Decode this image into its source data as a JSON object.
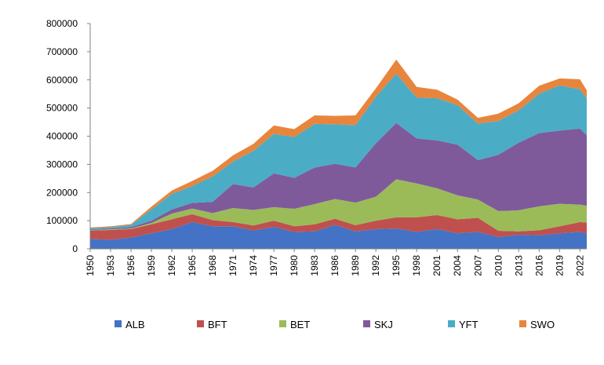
{
  "chart_data": {
    "type": "area",
    "stacked": true,
    "title": "",
    "xlabel": "",
    "ylabel": "",
    "ylim": [
      0,
      800000
    ],
    "yticks": [
      0,
      100000,
      200000,
      300000,
      400000,
      500000,
      600000,
      700000,
      800000
    ],
    "xlim": [
      1950,
      2023
    ],
    "xtick_values": [
      1950,
      1953,
      1956,
      1959,
      1962,
      1965,
      1968,
      1971,
      1974,
      1977,
      1980,
      1983,
      1986,
      1989,
      1992,
      1995,
      1998,
      2001,
      2004,
      2007,
      2010,
      2013,
      2016,
      2019,
      2022
    ],
    "xtick_labels": [
      "1950",
      "1953",
      "1956",
      "1959",
      "1962",
      "1965",
      "1968",
      "1971",
      "1974",
      "1977",
      "1980",
      "1983",
      "1986",
      "1989",
      "1992",
      "1995",
      "1998",
      "2001",
      "2004",
      "2007",
      "2010",
      "2013",
      "2016",
      "2019",
      "2022"
    ],
    "grid": false,
    "legend_position": "bottom",
    "key_x": [
      1950,
      1953,
      1956,
      1959,
      1962,
      1965,
      1968,
      1971,
      1974,
      1977,
      1980,
      1983,
      1986,
      1989,
      1992,
      1995,
      1998,
      2001,
      2004,
      2007,
      2010,
      2013,
      2016,
      2019,
      2022,
      2023
    ],
    "series": [
      {
        "name": "ALB",
        "color": "#4472C4",
        "values": [
          35000,
          32000,
          40000,
          55000,
          70000,
          95000,
          80000,
          80000,
          65000,
          78000,
          60000,
          62000,
          85000,
          62000,
          70000,
          72000,
          60000,
          70000,
          55000,
          60000,
          42000,
          50000,
          48000,
          55000,
          60000,
          55000
        ]
      },
      {
        "name": "BFT",
        "color": "#C0504D",
        "values": [
          30000,
          35000,
          30000,
          32000,
          35000,
          28000,
          22000,
          15000,
          18000,
          22000,
          20000,
          25000,
          22000,
          22000,
          30000,
          40000,
          52000,
          50000,
          50000,
          50000,
          22000,
          12000,
          18000,
          25000,
          35000,
          38000
        ]
      },
      {
        "name": "BET",
        "color": "#9BBB59",
        "values": [
          2000,
          2000,
          2000,
          5000,
          20000,
          20000,
          25000,
          50000,
          55000,
          48000,
          62000,
          72000,
          70000,
          80000,
          85000,
          135000,
          120000,
          95000,
          85000,
          65000,
          70000,
          75000,
          85000,
          80000,
          62000,
          60000
        ]
      },
      {
        "name": "SKJ",
        "color": "#7F5A9B",
        "values": [
          2000,
          3000,
          5000,
          8000,
          15000,
          20000,
          40000,
          85000,
          80000,
          120000,
          110000,
          130000,
          125000,
          125000,
          190000,
          200000,
          160000,
          170000,
          180000,
          140000,
          200000,
          240000,
          260000,
          260000,
          270000,
          250000
        ]
      },
      {
        "name": "YFT",
        "color": "#4BACC6",
        "values": [
          5000,
          5000,
          8000,
          40000,
          55000,
          60000,
          90000,
          80000,
          130000,
          140000,
          145000,
          155000,
          140000,
          150000,
          165000,
          175000,
          145000,
          150000,
          140000,
          130000,
          120000,
          115000,
          140000,
          160000,
          140000,
          130000
        ]
      },
      {
        "name": "SWO",
        "color": "#E8853D",
        "values": [
          2000,
          3000,
          3000,
          10000,
          12000,
          18000,
          20000,
          22000,
          25000,
          30000,
          28000,
          30000,
          30000,
          35000,
          30000,
          50000,
          38000,
          30000,
          20000,
          20000,
          26000,
          25000,
          28000,
          25000,
          35000,
          30000
        ]
      }
    ]
  }
}
